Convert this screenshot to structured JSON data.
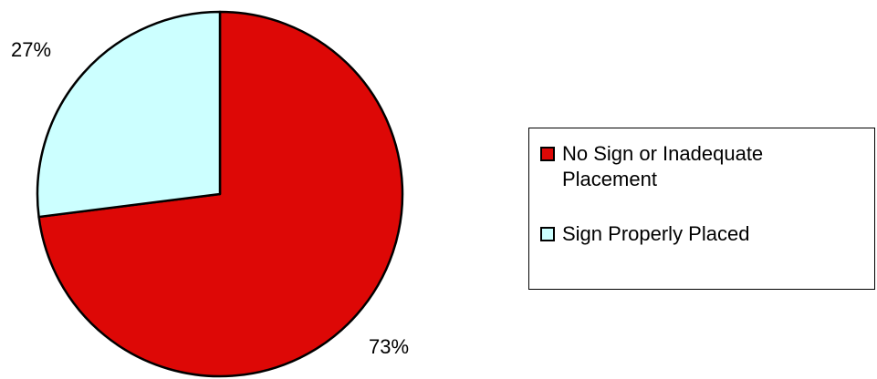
{
  "chart_data": {
    "type": "pie",
    "title": "",
    "slices": [
      {
        "label": "No Sign or Inadequate Placement",
        "value": 73,
        "value_label": "73%",
        "color": "#dd0806"
      },
      {
        "label": "Sign Properly Placed",
        "value": 27,
        "value_label": "27%",
        "color": "#ccffff"
      }
    ],
    "start": "12 o'clock",
    "direction": "clockwise",
    "legend_position": "right"
  },
  "legend": {
    "items": [
      {
        "label": "No Sign or Inadequate Placement",
        "color": "#dd0806"
      },
      {
        "label": "Sign Properly Placed",
        "color": "#ccffff"
      }
    ]
  }
}
